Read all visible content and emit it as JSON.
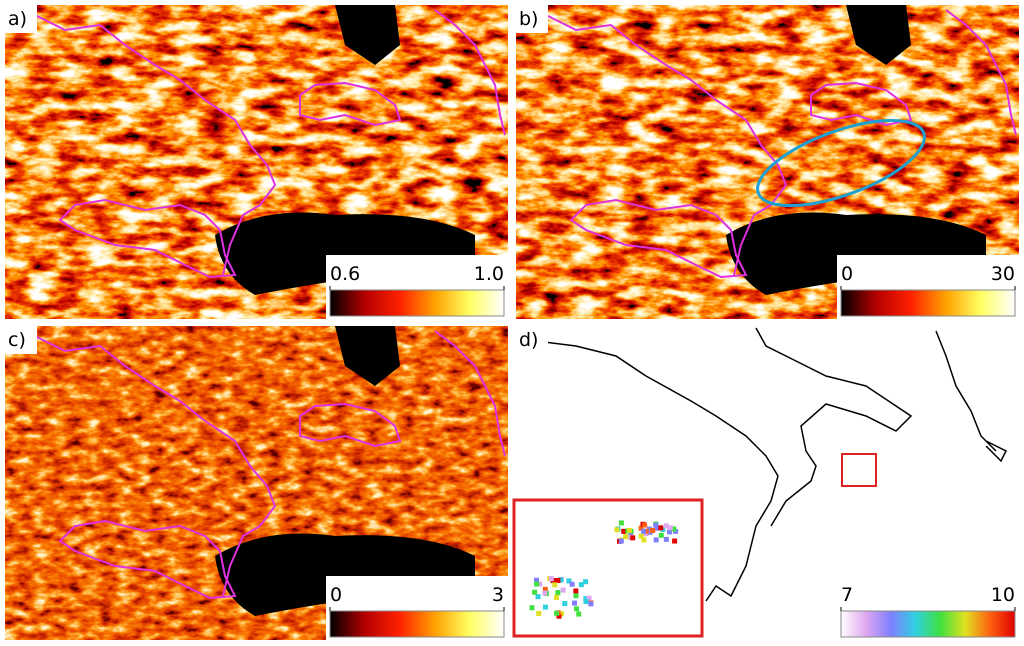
{
  "panels": [
    {
      "label": "a)",
      "colorbar": {
        "colors": [
          "#000000",
          "#b30000",
          "#ff2000",
          "#ffa000",
          "#ffff60",
          "#ffffff"
        ],
        "ticks": [
          0.6,
          {
            "value": 1,
            "label": "1.0"
          }
        ]
      }
    },
    {
      "label": "b)",
      "colorbar": {
        "colors": [
          "#000000",
          "#b30000",
          "#ff2000",
          "#ffa000",
          "#ffff60",
          "#ffffff"
        ],
        "ticks": [
          0,
          30
        ]
      }
    },
    {
      "label": "c)",
      "colorbar": {
        "colors": [
          "#000000",
          "#b30000",
          "#ff2000",
          "#ffa000",
          "#ffff60",
          "#ffffff"
        ],
        "ticks": [
          0,
          3
        ]
      }
    },
    {
      "label": "d)",
      "colorbar": {
        "colors": [
          "#ffffff",
          "#e0a8f0",
          "#8080ff",
          "#30d0e0",
          "#40e040",
          "#e0e020",
          "#ff6010",
          "#e00000"
        ],
        "ticks": [
          7,
          10
        ]
      }
    }
  ]
}
